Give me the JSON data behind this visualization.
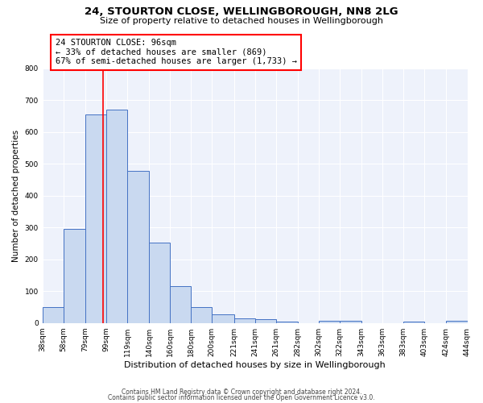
{
  "title": "24, STOURTON CLOSE, WELLINGBOROUGH, NN8 2LG",
  "subtitle": "Size of property relative to detached houses in Wellingborough",
  "xlabel": "Distribution of detached houses by size in Wellingborough",
  "ylabel": "Number of detached properties",
  "bin_edges": [
    38,
    58,
    79,
    99,
    119,
    140,
    160,
    180,
    200,
    221,
    241,
    261,
    282,
    302,
    322,
    343,
    363,
    383,
    403,
    424,
    444
  ],
  "bar_heights": [
    50,
    295,
    655,
    670,
    478,
    252,
    115,
    50,
    27,
    15,
    13,
    5,
    0,
    7,
    7,
    0,
    0,
    5,
    0,
    7
  ],
  "bar_face_color": "#c9d9f0",
  "bar_edge_color": "#4472c4",
  "vline_x": 96,
  "vline_color": "red",
  "annotation_line1": "24 STOURTON CLOSE: 96sqm",
  "annotation_line2": "← 33% of detached houses are smaller (869)",
  "annotation_line3": "67% of semi-detached houses are larger (1,733) →",
  "annotation_box_color": "red",
  "ylim": [
    0,
    800
  ],
  "yticks": [
    0,
    100,
    200,
    300,
    400,
    500,
    600,
    700,
    800
  ],
  "background_color": "#eef2fb",
  "footer_line1": "Contains HM Land Registry data © Crown copyright and database right 2024.",
  "footer_line2": "Contains public sector information licensed under the Open Government Licence v3.0.",
  "tick_labels": [
    "38sqm",
    "58sqm",
    "79sqm",
    "99sqm",
    "119sqm",
    "140sqm",
    "160sqm",
    "180sqm",
    "200sqm",
    "221sqm",
    "241sqm",
    "261sqm",
    "282sqm",
    "302sqm",
    "322sqm",
    "343sqm",
    "363sqm",
    "383sqm",
    "403sqm",
    "424sqm",
    "444sqm"
  ],
  "title_fontsize": 9.5,
  "subtitle_fontsize": 8,
  "xlabel_fontsize": 8,
  "ylabel_fontsize": 7.5,
  "tick_fontsize": 6.5,
  "annotation_fontsize": 7.5,
  "footer_fontsize": 5.5
}
